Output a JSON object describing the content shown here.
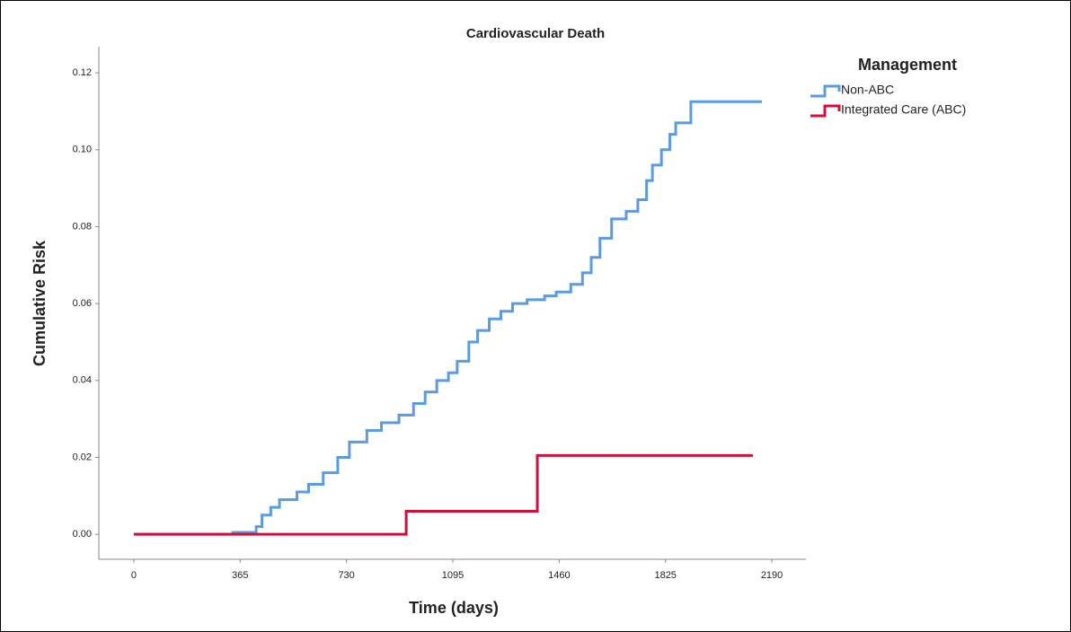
{
  "chart_data": {
    "type": "step",
    "title": "Cardiovascular Death",
    "x_label": "Time (days)",
    "y_label": "Cumulative Risk",
    "legend_title": "Management",
    "xlim": [
      -120,
      2307
    ],
    "ylim": [
      -0.0065,
      0.1268
    ],
    "xticks": [
      0,
      365,
      730,
      1095,
      1460,
      1825,
      2190
    ],
    "yticks": [
      {
        "value": 0,
        "label": "0.00"
      },
      {
        "value": 0.02,
        "label": "0.02"
      },
      {
        "value": 0.04,
        "label": "0.04"
      },
      {
        "value": 0.06,
        "label": "0.06"
      },
      {
        "value": 0.08,
        "label": "0.08"
      },
      {
        "value": 0.1,
        "label": "0.10"
      },
      {
        "value": 0.12,
        "label": "0.12"
      }
    ],
    "series": [
      {
        "name": "Non-ABC",
        "color": "#5b9be0",
        "x": [
          0,
          340,
          420,
          440,
          470,
          500,
          560,
          600,
          650,
          700,
          740,
          800,
          850,
          910,
          960,
          1000,
          1040,
          1080,
          1110,
          1150,
          1180,
          1220,
          1260,
          1300,
          1350,
          1410,
          1450,
          1500,
          1540,
          1570,
          1600,
          1640,
          1690,
          1730,
          1760,
          1780,
          1811,
          1840,
          1860,
          1912,
          2156
        ],
        "values": [
          0,
          0.0005,
          0.002,
          0.005,
          0.007,
          0.009,
          0.011,
          0.013,
          0.016,
          0.02,
          0.024,
          0.027,
          0.029,
          0.031,
          0.034,
          0.037,
          0.04,
          0.042,
          0.045,
          0.05,
          0.053,
          0.056,
          0.058,
          0.06,
          0.061,
          0.062,
          0.063,
          0.065,
          0.068,
          0.072,
          0.077,
          0.082,
          0.084,
          0.087,
          0.092,
          0.096,
          0.1,
          0.104,
          0.107,
          0.1125,
          0.1125
        ]
      },
      {
        "name": "Integrated Care (ABC)",
        "color": "#d0103a",
        "x": [
          0,
          935,
          1385,
          2125
        ],
        "values": [
          0,
          0.006,
          0.0205,
          0.0205
        ]
      }
    ]
  }
}
